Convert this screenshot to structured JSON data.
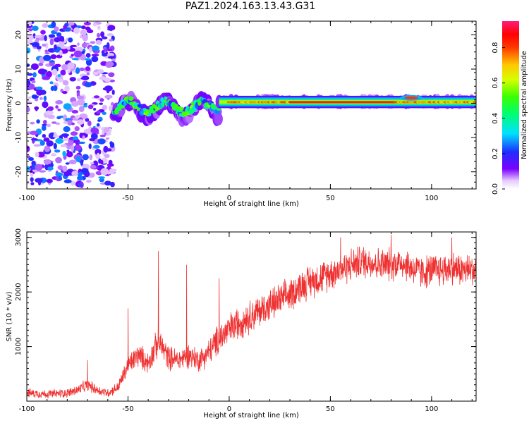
{
  "title": "PAZ1.2024.163.13.43.G31",
  "chart_data": [
    {
      "type": "heatmap",
      "xlabel": "Height of straight line (km)",
      "ylabel": "Frequency (Hz)",
      "xlim": [
        -100,
        122
      ],
      "ylim": [
        -25,
        24
      ],
      "xticks": [
        -100,
        -50,
        0,
        50,
        100
      ],
      "yticks": [
        -20,
        -10,
        0,
        10,
        20
      ],
      "colorbar": {
        "label": "Normalized spectral amplitude",
        "range": [
          0.0,
          0.95
        ],
        "ticks": [
          "0.0",
          "0.2",
          "0.4",
          "0.6",
          "0.8"
        ],
        "colormap": "rainbow (purple to red to pink)"
      },
      "grid": false,
      "regions": [
        {
          "x_range": [
            -100,
            -57
          ],
          "description": "scattered low-amplitude noise across all frequencies",
          "amplitude": [
            0.05,
            0.3
          ],
          "freq_range": [
            -24,
            24
          ]
        },
        {
          "x_range": [
            -57,
            -5
          ],
          "description": "noisy signal near 0 Hz",
          "amplitude": [
            0.2,
            0.6
          ],
          "freq_range": [
            -6,
            4
          ]
        },
        {
          "x_range": [
            -5,
            122
          ],
          "description": "strong narrow signal near 0 Hz",
          "amplitude": [
            0.6,
            0.95
          ],
          "freq_range": [
            -1,
            2
          ]
        }
      ]
    },
    {
      "type": "line",
      "xlabel": "Height of straight line (km)",
      "ylabel": "SNR (10 * v/v)",
      "xlim": [
        -100,
        122
      ],
      "ylim": [
        0,
        3100
      ],
      "xticks": [
        -100,
        -50,
        0,
        50,
        100
      ],
      "yticks": [
        1000,
        2000,
        3000
      ],
      "grid": false,
      "color": "#ef3030",
      "x": [
        -100,
        -95,
        -90,
        -85,
        -80,
        -75,
        -70,
        -65,
        -60,
        -55,
        -50,
        -45,
        -40,
        -35,
        -30,
        -25,
        -20,
        -15,
        -10,
        -5,
        0,
        5,
        10,
        15,
        20,
        25,
        30,
        35,
        40,
        45,
        50,
        55,
        60,
        65,
        70,
        75,
        80,
        85,
        90,
        95,
        100,
        105,
        110,
        115,
        122
      ],
      "y": [
        150,
        140,
        130,
        140,
        150,
        200,
        300,
        200,
        150,
        250,
        650,
        850,
        700,
        1100,
        800,
        750,
        850,
        750,
        900,
        1150,
        1300,
        1450,
        1550,
        1650,
        1750,
        1850,
        1950,
        2100,
        2200,
        2250,
        2350,
        2400,
        2500,
        2550,
        2550,
        2500,
        2500,
        2550,
        2450,
        2350,
        2400,
        2400,
        2450,
        2400,
        2400
      ],
      "spikes": [
        {
          "x": -70,
          "y": 750
        },
        {
          "x": -50,
          "y": 1700
        },
        {
          "x": -35,
          "y": 2750
        },
        {
          "x": -21,
          "y": 2500
        },
        {
          "x": -5,
          "y": 2250
        },
        {
          "x": 55,
          "y": 3000
        },
        {
          "x": 80,
          "y": 3050
        },
        {
          "x": 110,
          "y": 3000
        }
      ],
      "noise_amplitude": 300
    }
  ]
}
